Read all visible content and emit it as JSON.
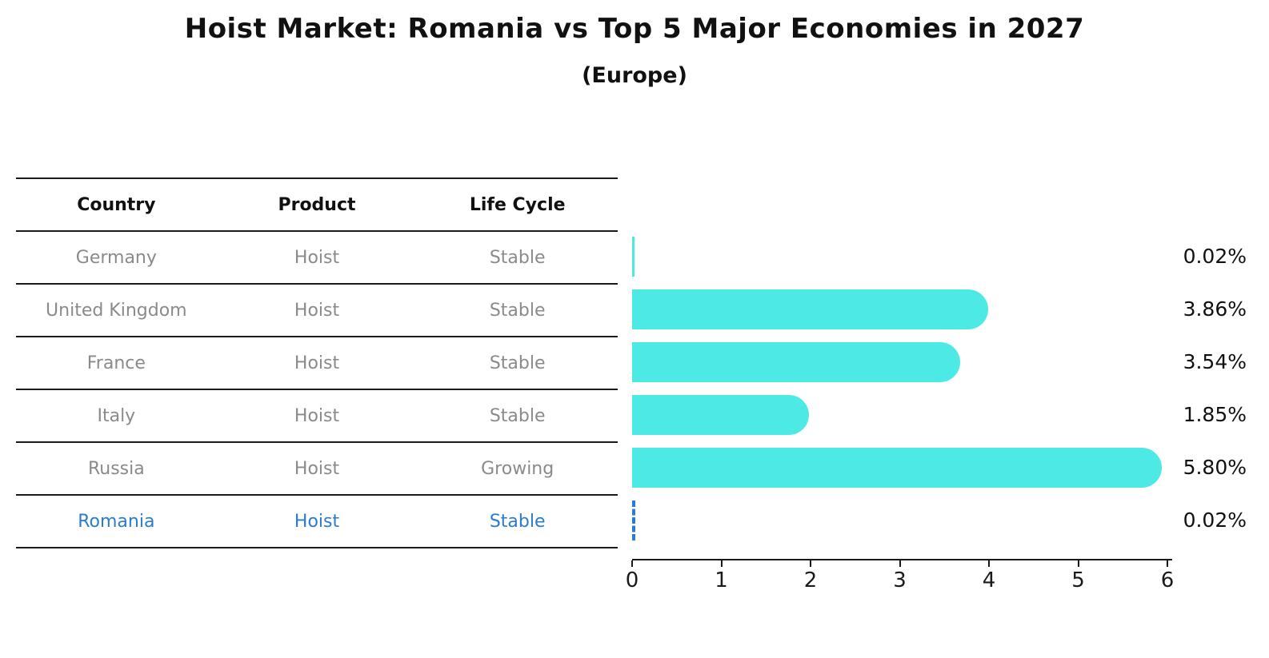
{
  "page": {
    "background": "#ffffff"
  },
  "header": {
    "title": "Hoist Market: Romania vs Top 5 Major Economies in 2027",
    "subtitle": "(Europe)"
  },
  "table": {
    "columns": [
      "Country",
      "Product",
      "Life Cycle"
    ],
    "rows": [
      {
        "country": "Germany",
        "product": "Hoist",
        "life_cycle": "Stable",
        "highlight": false
      },
      {
        "country": "United Kingdom",
        "product": "Hoist",
        "life_cycle": "Stable",
        "highlight": false
      },
      {
        "country": "France",
        "product": "Hoist",
        "life_cycle": "Stable",
        "highlight": false
      },
      {
        "country": "Italy",
        "product": "Hoist",
        "life_cycle": "Stable",
        "highlight": false
      },
      {
        "country": "Russia",
        "product": "Hoist",
        "life_cycle": "Growing",
        "highlight": false
      },
      {
        "country": "Romania",
        "product": "Hoist",
        "life_cycle": "Stable",
        "highlight": true
      }
    ]
  },
  "chart_data": {
    "type": "bar",
    "orientation": "horizontal",
    "title": "Hoist Market: Romania vs Top 5 Major Economies in 2027",
    "subtitle": "(Europe)",
    "categories": [
      "Germany",
      "United Kingdom",
      "France",
      "Italy",
      "Russia",
      "Romania"
    ],
    "values": [
      0.02,
      3.86,
      3.54,
      1.85,
      5.8,
      0.02
    ],
    "value_labels": [
      "0.02%",
      "3.86%",
      "3.54%",
      "1.85%",
      "5.80%",
      "0.02%"
    ],
    "xlim": [
      0,
      6
    ],
    "xticks": [
      0,
      1,
      2,
      3,
      4,
      5,
      6
    ],
    "xlabel": "",
    "ylabel": "",
    "grid": false,
    "legend": false,
    "bar_color": "#4de9e5",
    "highlight_index": 5,
    "highlight_style": "dashed-outline",
    "highlight_color": "#2b7bce"
  },
  "colors": {
    "bar_cyan": "#4de9e5",
    "accent_blue": "#2b7bce",
    "table_text_gray": "#8a8a8a",
    "axis_black": "#1a1a1a",
    "text_black": "#111111"
  }
}
